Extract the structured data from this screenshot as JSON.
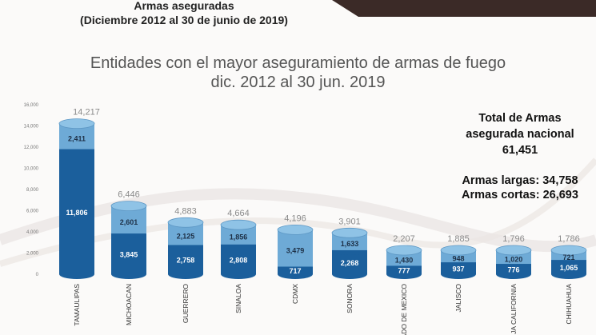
{
  "header": {
    "title": "Armas aseguradas",
    "subtitle": "(Diciembre 2012 al 30 de junio de 2019)"
  },
  "summary": {
    "line1": "Total de Armas",
    "line2": "asegurada nacional",
    "total": "61,451",
    "largas": "Armas largas: 34,758",
    "cortas": "Armas cortas: 26,693"
  },
  "colors": {
    "bottom": "#1b5f9c",
    "top": "#6eaad6",
    "cap": "#8fc3e6",
    "banner": "#3b2a27"
  },
  "chart_data": {
    "type": "bar",
    "stacked": true,
    "title": "Entidades con el mayor aseguramiento de armas de fuego",
    "subtitle": "dic. 2012 al 30 jun. 2019",
    "xlabel": "",
    "ylabel": "",
    "ylim": [
      0,
      16000
    ],
    "yticks": [
      "0",
      "2,000",
      "4,000",
      "6,000",
      "8,000",
      "10,000",
      "12,000",
      "14,000",
      "16,000"
    ],
    "categories": [
      "TAMAULIPAS",
      "MICHOACAN",
      "GUERRERO",
      "SINALOA",
      "CDMX",
      "SONORA",
      "ADO DE MEXICO",
      "JALISCO",
      "JA CALIFORNIA",
      "CHIHUAHUA"
    ],
    "totals": [
      "14,217",
      "6,446",
      "4,883",
      "4,664",
      "4,196",
      "3,901",
      "2,207",
      "1,885",
      "1,796",
      "1,786"
    ],
    "series": [
      {
        "values": [
          11806,
          3845,
          2758,
          2808,
          717,
          2268,
          777,
          937,
          776,
          1065
        ],
        "labels": [
          "11,806",
          "3,845",
          "2,758",
          "2,808",
          "717",
          "2,268",
          "777",
          "937",
          "776",
          "1,065"
        ]
      },
      {
        "values": [
          2411,
          2601,
          2125,
          1856,
          3479,
          1633,
          1430,
          948,
          1020,
          721
        ],
        "labels": [
          "2,411",
          "2,601",
          "2,125",
          "1,856",
          "3,479",
          "1,633",
          "1,430",
          "948",
          "1,020",
          "721"
        ]
      }
    ],
    "grid": false,
    "legend": "none"
  }
}
